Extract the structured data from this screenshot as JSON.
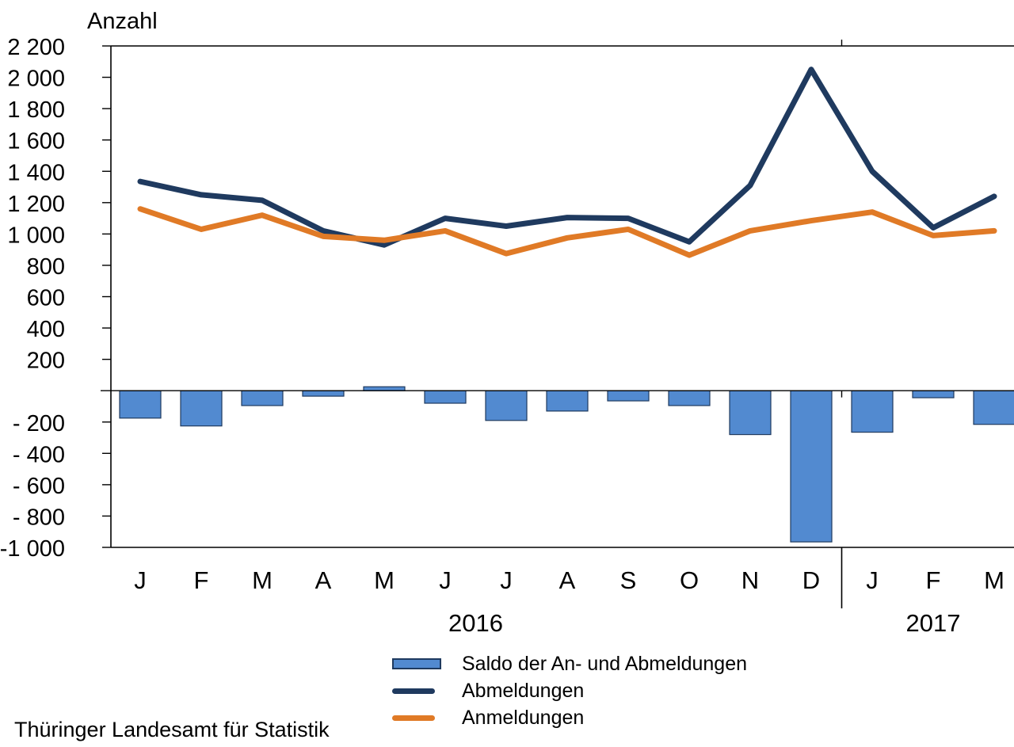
{
  "header": {
    "y_axis_title": "Anzahl"
  },
  "footer": {
    "source": "Thüringer Landesamt für Statistik"
  },
  "legend": {
    "items": [
      {
        "label": "Saldo der An- und Abmeldungen",
        "swatch": "bar",
        "color": "#528AD0"
      },
      {
        "label": "Abmeldungen",
        "swatch": "line",
        "color": "#1F3A5F"
      },
      {
        "label": "Anmeldungen",
        "swatch": "line",
        "color": "#E07A26"
      }
    ]
  },
  "chart_data": {
    "type": "combo (bar + line)",
    "title": "",
    "ylabel": "Anzahl",
    "categories": [
      "J",
      "F",
      "M",
      "A",
      "M",
      "J",
      "J",
      "A",
      "S",
      "O",
      "N",
      "D",
      "J",
      "F",
      "M"
    ],
    "year_groups": [
      {
        "label": "2016",
        "start": 0,
        "end": 11
      },
      {
        "label": "2017",
        "start": 12,
        "end": 14
      }
    ],
    "y_axis": {
      "min": -1000,
      "max": 2200,
      "tick_step": 200,
      "tick_labels": [
        "2 200",
        "2 000",
        "1 800",
        "1 600",
        "1 400",
        "1 200",
        "1 000",
        "800",
        "600",
        "400",
        "200",
        "",
        "- 200",
        "- 400",
        "- 600",
        "- 800",
        "-1 000"
      ]
    },
    "grid": "none",
    "legend_position": "bottom-center",
    "axis_color": "#000000",
    "series": [
      {
        "name": "Saldo der An- und Abmeldungen",
        "type": "bar",
        "color": "#528AD0",
        "border_color": "#1F3A5F",
        "values": [
          -175,
          -225,
          -95,
          -35,
          25,
          -80,
          -190,
          -130,
          -65,
          -95,
          -280,
          -965,
          -265,
          -45,
          -215
        ]
      },
      {
        "name": "Abmeldungen",
        "type": "line",
        "color": "#1F3A5F",
        "values": [
          1335,
          1250,
          1215,
          1020,
          930,
          1100,
          1050,
          1105,
          1100,
          950,
          1310,
          2050,
          1400,
          1040,
          1240
        ]
      },
      {
        "name": "Anmeldungen",
        "type": "line",
        "color": "#E07A26",
        "values": [
          1160,
          1030,
          1120,
          985,
          960,
          1020,
          875,
          975,
          1030,
          865,
          1020,
          1085,
          1140,
          990,
          1020
        ]
      }
    ]
  }
}
